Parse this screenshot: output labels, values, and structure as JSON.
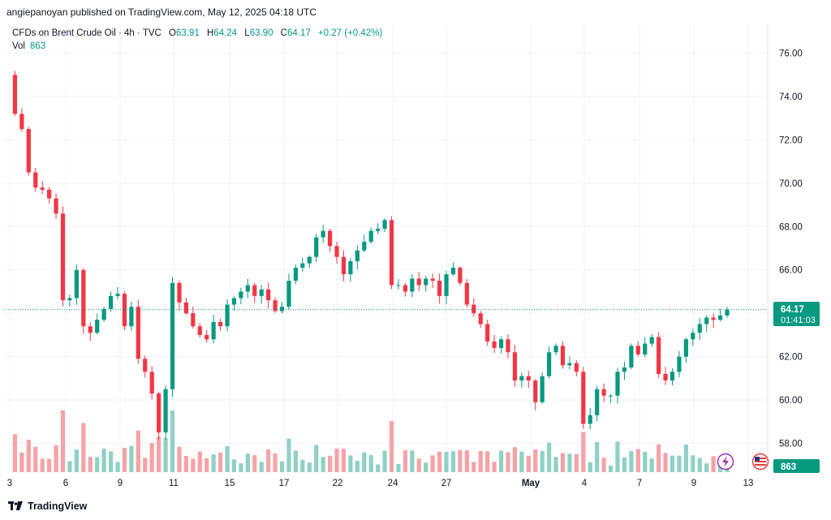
{
  "header": {
    "published": "angiepanoyan published on TradingView.com, May 12, 2025 04:18 UTC"
  },
  "legend": {
    "symbol": "CFDs on Brent Crude Oil · 4h · TVC",
    "o_label": "O",
    "o": "63.91",
    "h_label": "H",
    "h": "64.24",
    "l_label": "L",
    "l": "63.90",
    "c_label": "C",
    "c": "64.17",
    "change": "+0.27 (+0.42%)",
    "vol_label": "Vol",
    "vol": "863"
  },
  "price_tag": {
    "price": "64.17",
    "countdown": "01:41:03"
  },
  "volume_tag": "863",
  "footer": {
    "brand": "TradingView"
  },
  "colors": {
    "up": "#089981",
    "down": "#f23645",
    "up_vol": "#8fd1c4",
    "down_vol": "#f5a3a7"
  },
  "chart_data": {
    "type": "candlestick",
    "title": "CFDs on Brent Crude Oil · 4h · TVC",
    "y_ticks": [
      "58.00",
      "60.00",
      "62.00",
      "64.00",
      "66.00",
      "68.00",
      "70.00",
      "72.00",
      "74.00",
      "76.00"
    ],
    "ylim": [
      57.0,
      77.0
    ],
    "x_ticks": [
      "3",
      "6",
      "9",
      "11",
      "15",
      "17",
      "22",
      "24",
      "27",
      "May",
      "4",
      "7",
      "9",
      "13"
    ],
    "last_price": 64.17,
    "series_path": [
      [
        0,
        75.0
      ],
      [
        1,
        73.2
      ],
      [
        2,
        72.5
      ],
      [
        3,
        70.5
      ],
      [
        4,
        69.8
      ],
      [
        5,
        69.7
      ],
      [
        6,
        69.3
      ],
      [
        7,
        68.6
      ],
      [
        8,
        64.6
      ],
      [
        9,
        64.7
      ],
      [
        10,
        66.0
      ],
      [
        11,
        63.4
      ],
      [
        12,
        63.1
      ],
      [
        13,
        63.7
      ],
      [
        14,
        64.2
      ],
      [
        15,
        64.8
      ],
      [
        16,
        64.9
      ],
      [
        17,
        63.4
      ],
      [
        18,
        64.3
      ],
      [
        19,
        61.9
      ],
      [
        20,
        61.3
      ],
      [
        21,
        60.3
      ],
      [
        22,
        58.5
      ],
      [
        23,
        60.5
      ],
      [
        24,
        65.4
      ],
      [
        25,
        64.5
      ],
      [
        26,
        64.0
      ],
      [
        27,
        63.4
      ],
      [
        28,
        63.0
      ],
      [
        29,
        62.8
      ],
      [
        30,
        63.6
      ],
      [
        31,
        63.4
      ],
      [
        32,
        64.4
      ],
      [
        33,
        64.7
      ],
      [
        34,
        65.0
      ],
      [
        35,
        65.3
      ],
      [
        36,
        64.8
      ],
      [
        37,
        65.1
      ],
      [
        38,
        64.6
      ],
      [
        39,
        64.1
      ],
      [
        40,
        64.3
      ],
      [
        41,
        65.5
      ],
      [
        42,
        66.1
      ],
      [
        43,
        66.3
      ],
      [
        44,
        66.6
      ],
      [
        45,
        67.5
      ],
      [
        46,
        67.8
      ],
      [
        47,
        67.1
      ],
      [
        48,
        66.6
      ],
      [
        49,
        65.8
      ],
      [
        50,
        66.4
      ],
      [
        51,
        66.9
      ],
      [
        52,
        67.3
      ],
      [
        53,
        67.8
      ],
      [
        54,
        67.9
      ],
      [
        55,
        68.3
      ],
      [
        56,
        65.3
      ],
      [
        57,
        65.3
      ],
      [
        58,
        65.0
      ],
      [
        59,
        65.6
      ],
      [
        60,
        65.3
      ],
      [
        61,
        65.6
      ],
      [
        62,
        65.5
      ],
      [
        63,
        64.8
      ],
      [
        64,
        65.8
      ],
      [
        65,
        66.1
      ],
      [
        66,
        65.4
      ],
      [
        67,
        64.4
      ],
      [
        68,
        64.0
      ],
      [
        69,
        63.5
      ],
      [
        70,
        62.7
      ],
      [
        71,
        62.4
      ],
      [
        72,
        62.8
      ],
      [
        73,
        62.2
      ],
      [
        74,
        60.9
      ],
      [
        75,
        61.1
      ],
      [
        76,
        60.9
      ],
      [
        77,
        59.9
      ],
      [
        78,
        61.1
      ],
      [
        79,
        62.2
      ],
      [
        80,
        62.5
      ],
      [
        81,
        61.6
      ],
      [
        82,
        61.7
      ],
      [
        83,
        61.3
      ],
      [
        84,
        58.9
      ],
      [
        85,
        59.3
      ],
      [
        86,
        60.5
      ],
      [
        87,
        60.2
      ],
      [
        88,
        60.2
      ],
      [
        89,
        61.3
      ],
      [
        90,
        61.5
      ],
      [
        91,
        62.5
      ],
      [
        92,
        62.1
      ],
      [
        93,
        62.6
      ],
      [
        94,
        62.9
      ],
      [
        95,
        61.2
      ],
      [
        96,
        60.9
      ],
      [
        97,
        61.3
      ],
      [
        98,
        62.0
      ],
      [
        99,
        62.8
      ],
      [
        100,
        63.1
      ],
      [
        101,
        63.5
      ],
      [
        102,
        63.8
      ],
      [
        103,
        63.7
      ],
      [
        104,
        63.9
      ],
      [
        105,
        64.17
      ]
    ]
  }
}
